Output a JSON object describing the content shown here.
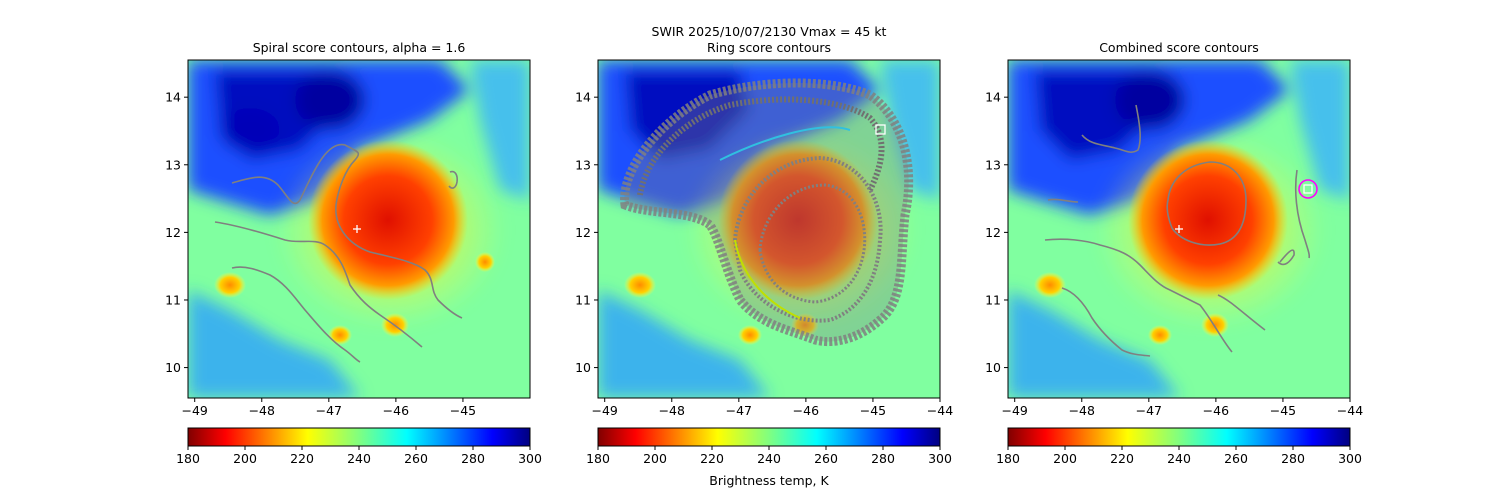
{
  "suptitle_line1": "SWIR  2025/10/07/2130    Vmax = 45 kt",
  "colorbar_label": "Brightness temp, K",
  "colorbar": {
    "min": 180,
    "max": 300,
    "ticks": [
      180,
      200,
      220,
      240,
      260,
      280,
      300
    ],
    "colormap": "jet_r"
  },
  "chart_data": [
    {
      "type": "heatmap",
      "title": "Spiral score contours, alpha =  1.6",
      "xlabel": "",
      "ylabel": "",
      "xlim": [
        -49.1,
        -44.0
      ],
      "ylim": [
        9.55,
        14.55
      ],
      "xticks": [
        -49,
        -48,
        -47,
        -46,
        -45
      ],
      "yticks": [
        10,
        11,
        12,
        13,
        14
      ],
      "marker_plus": {
        "x": -46.6,
        "y": 12.03,
        "color": "#ffffff"
      },
      "contour_color": "#808080"
    },
    {
      "type": "heatmap",
      "title": "Ring score contours",
      "xlabel": "",
      "ylabel": "",
      "xlim": [
        -49.1,
        -44.0
      ],
      "ylim": [
        9.55,
        14.55
      ],
      "xticks": [
        -49,
        -48,
        -47,
        -46,
        -45,
        -44
      ],
      "yticks": [
        10,
        11,
        12,
        13,
        14
      ],
      "marker_square": {
        "x": -44.87,
        "y": 13.5,
        "color": "#ffffff"
      },
      "contour_color": "#808080"
    },
    {
      "type": "heatmap",
      "title": "Combined score contours",
      "xlabel": "",
      "ylabel": "",
      "xlim": [
        -49.1,
        -44.0
      ],
      "ylim": [
        9.55,
        14.55
      ],
      "xticks": [
        -49,
        -48,
        -47,
        -46,
        -45,
        -44
      ],
      "yticks": [
        10,
        11,
        12,
        13,
        14
      ],
      "marker_plus": {
        "x": -46.6,
        "y": 12.03,
        "color": "#ffffff"
      },
      "marker_square": {
        "x": -44.62,
        "y": 12.62,
        "color": "#ffffff"
      },
      "marker_circle": {
        "x": -44.62,
        "y": 12.62,
        "color": "#ff00ff"
      },
      "contour_color": "#808080"
    }
  ]
}
